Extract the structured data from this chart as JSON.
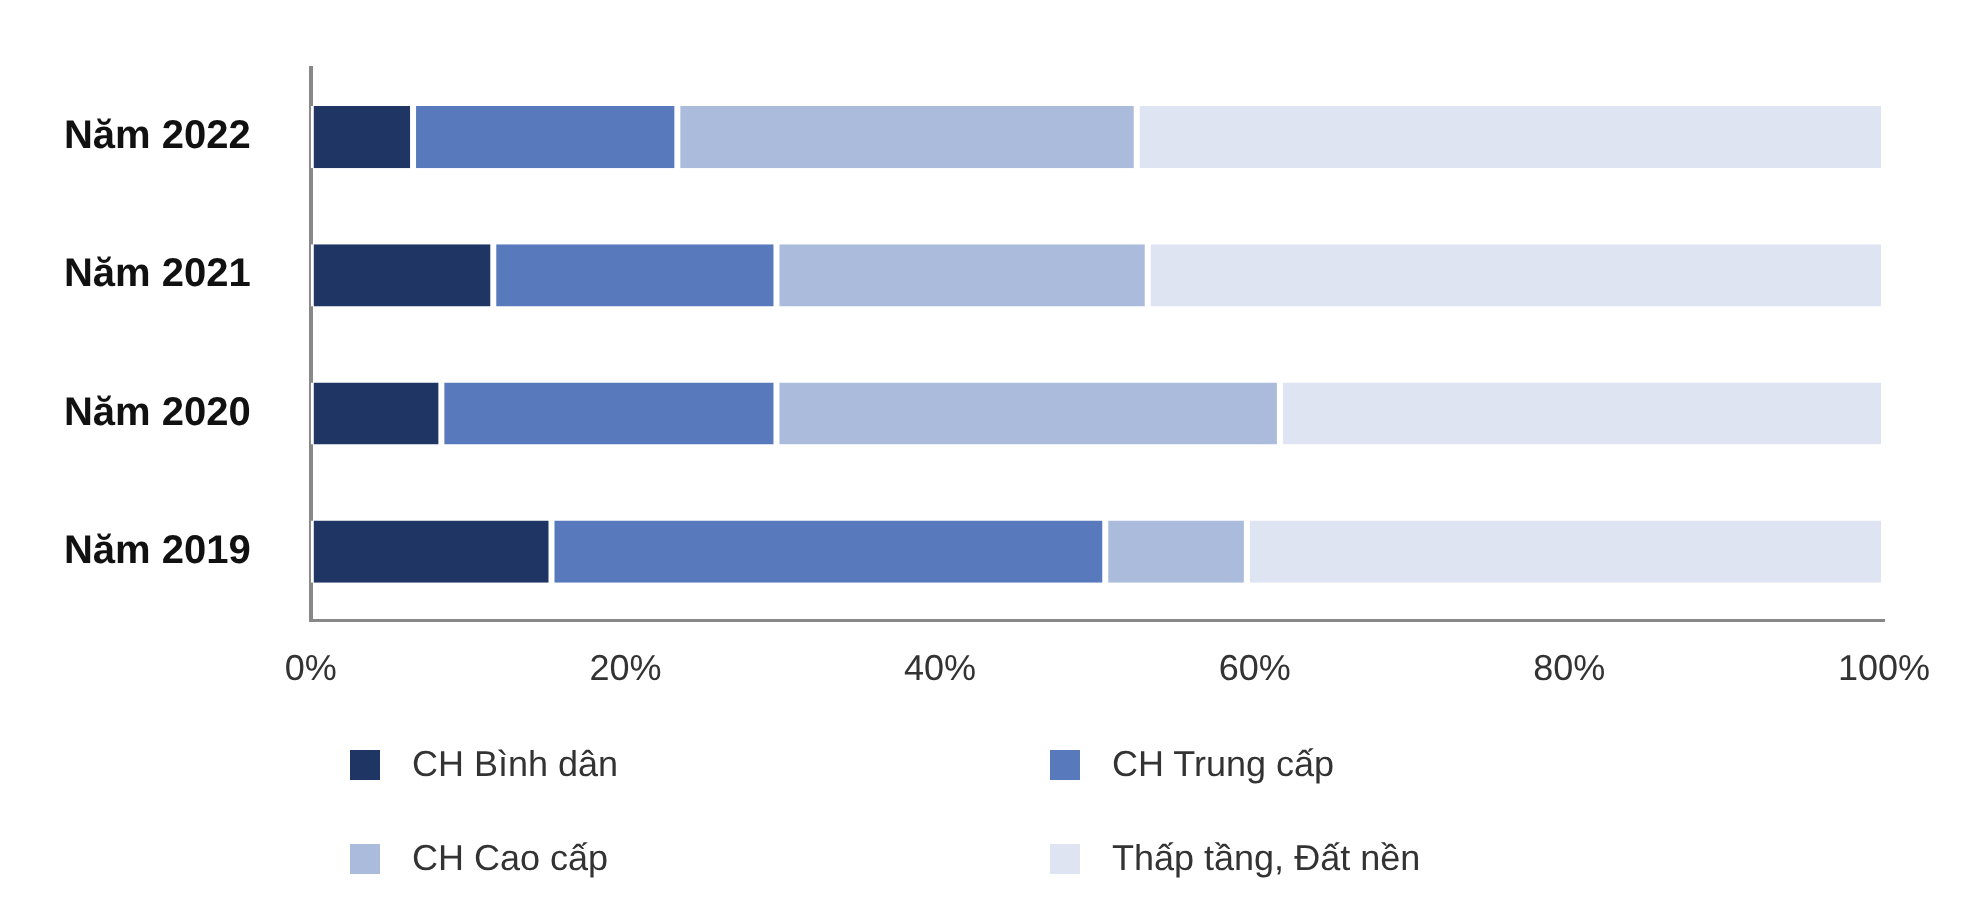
{
  "chart_data": {
    "type": "bar",
    "orientation": "horizontal",
    "stacked": true,
    "categories": [
      "Năm 2022",
      "Năm 2021",
      "Năm 2020",
      "Năm 2019"
    ],
    "series": [
      {
        "name": "CH Bình dân",
        "color": "#1f3564",
        "values": [
          6.5,
          11.6,
          8.3,
          15.3
        ]
      },
      {
        "name": "CH Trung cấp",
        "color": "#5879bb",
        "values": [
          16.8,
          18.0,
          21.3,
          35.2
        ]
      },
      {
        "name": "CH Cao cấp",
        "color": "#abbbdc",
        "values": [
          29.2,
          23.6,
          32.0,
          9.0
        ]
      },
      {
        "name": "Thấp tầng, Đất nền",
        "color": "#dee4f2",
        "values": [
          47.5,
          46.8,
          38.4,
          40.5
        ]
      }
    ],
    "xlim": [
      0,
      100
    ],
    "xticks": [
      {
        "value": 0,
        "label": "0%"
      },
      {
        "value": 20,
        "label": "20%"
      },
      {
        "value": 40,
        "label": "40%"
      },
      {
        "value": 60,
        "label": "60%"
      },
      {
        "value": 80,
        "label": "80%"
      },
      {
        "value": 100,
        "label": "100%"
      }
    ],
    "grid": false,
    "legend": "bottom"
  }
}
